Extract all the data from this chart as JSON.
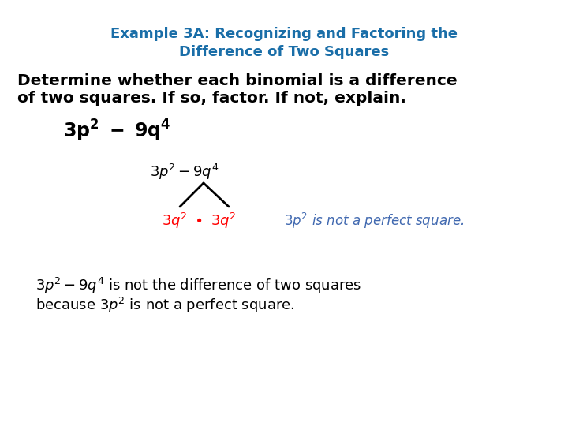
{
  "title_line1": "Example 3A: Recognizing and Factoring the",
  "title_line2": "Difference of Two Squares",
  "title_color": "#1a6ea8",
  "background_color": "#ffffff",
  "fig_width": 7.2,
  "fig_height": 5.4,
  "dpi": 100
}
